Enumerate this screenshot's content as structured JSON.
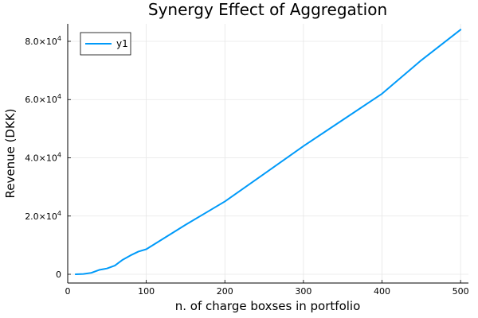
{
  "chart_data": {
    "type": "line",
    "title": "Synergy Effect of Aggregation",
    "xlabel": "n. of charge boxses in portfolio",
    "ylabel": "Revenue (DKK)",
    "xlim": [
      0,
      510
    ],
    "ylim": [
      -3000,
      86000
    ],
    "xticks": [
      0,
      100,
      200,
      300,
      400,
      500
    ],
    "xtick_labels": [
      "0",
      "100",
      "200",
      "300",
      "400",
      "500"
    ],
    "yticks": [
      0,
      20000,
      40000,
      60000,
      80000
    ],
    "ytick_labels": [
      {
        "mantissa": "0",
        "exponent": ""
      },
      {
        "mantissa": "2.0×10",
        "exponent": "4"
      },
      {
        "mantissa": "4.0×10",
        "exponent": "4"
      },
      {
        "mantissa": "6.0×10",
        "exponent": "4"
      },
      {
        "mantissa": "8.0×10",
        "exponent": "4"
      }
    ],
    "grid": true,
    "legend_position": "top-left",
    "series": [
      {
        "name": "y1",
        "color": "#009af9",
        "x": [
          10,
          20,
          30,
          40,
          50,
          60,
          70,
          80,
          90,
          100,
          150,
          200,
          250,
          300,
          350,
          400,
          450,
          500
        ],
        "y": [
          0,
          100,
          500,
          1500,
          2000,
          3000,
          5000,
          6500,
          7800,
          8600,
          17000,
          25000,
          34500,
          44000,
          53000,
          62000,
          73500,
          84000
        ]
      }
    ]
  }
}
